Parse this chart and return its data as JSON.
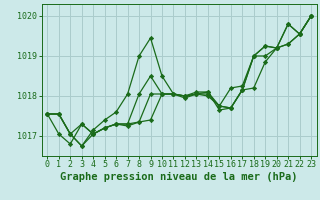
{
  "title": "Graphe pression niveau de la mer (hPa)",
  "bg_color": "#cce9e9",
  "grid_color": "#aacccc",
  "line_color": "#1a6b1a",
  "x_values": [
    0,
    1,
    2,
    3,
    4,
    5,
    6,
    7,
    8,
    9,
    10,
    11,
    12,
    13,
    14,
    15,
    16,
    17,
    18,
    19,
    20,
    21,
    22,
    23
  ],
  "series": [
    [
      1017.55,
      1017.55,
      1017.05,
      1016.75,
      1017.15,
      1017.4,
      1017.6,
      1018.05,
      1019.0,
      1019.45,
      1018.5,
      1018.05,
      1018.0,
      1018.05,
      1018.1,
      1017.75,
      1017.7,
      1018.15,
      1019.0,
      1019.25,
      1019.2,
      1019.8,
      1019.55,
      1020.0
    ],
    [
      1017.55,
      1017.55,
      1017.05,
      1017.3,
      1017.05,
      1017.2,
      1017.3,
      1017.25,
      1017.35,
      1018.05,
      1018.05,
      1018.05,
      1017.95,
      1018.05,
      1018.05,
      1017.75,
      1017.7,
      1018.15,
      1018.2,
      1018.85,
      1019.2,
      1019.8,
      1019.55,
      1020.0
    ],
    [
      1017.55,
      1017.55,
      1017.05,
      1016.75,
      1017.05,
      1017.2,
      1017.3,
      1017.3,
      1018.05,
      1018.5,
      1018.05,
      1018.05,
      1018.0,
      1018.05,
      1018.0,
      1017.75,
      1018.2,
      1018.25,
      1019.0,
      1019.0,
      1019.2,
      1019.3,
      1019.55,
      1020.0
    ],
    [
      1017.55,
      1017.05,
      1016.8,
      1017.3,
      1017.05,
      1017.2,
      1017.3,
      1017.3,
      1017.35,
      1017.4,
      1018.05,
      1018.05,
      1018.0,
      1018.1,
      1018.1,
      1017.65,
      1017.7,
      1018.15,
      1019.0,
      1019.25,
      1019.2,
      1019.3,
      1019.55,
      1020.0
    ]
  ],
  "ylim": [
    1016.5,
    1020.3
  ],
  "yticks": [
    1017,
    1018,
    1019,
    1020
  ],
  "xticks": [
    0,
    1,
    2,
    3,
    4,
    5,
    6,
    7,
    8,
    9,
    10,
    11,
    12,
    13,
    14,
    15,
    16,
    17,
    18,
    19,
    20,
    21,
    22,
    23
  ],
  "marker": "D",
  "markersize": 2.2,
  "linewidth": 0.9,
  "title_fontsize": 7.5,
  "tick_fontsize": 6.0
}
